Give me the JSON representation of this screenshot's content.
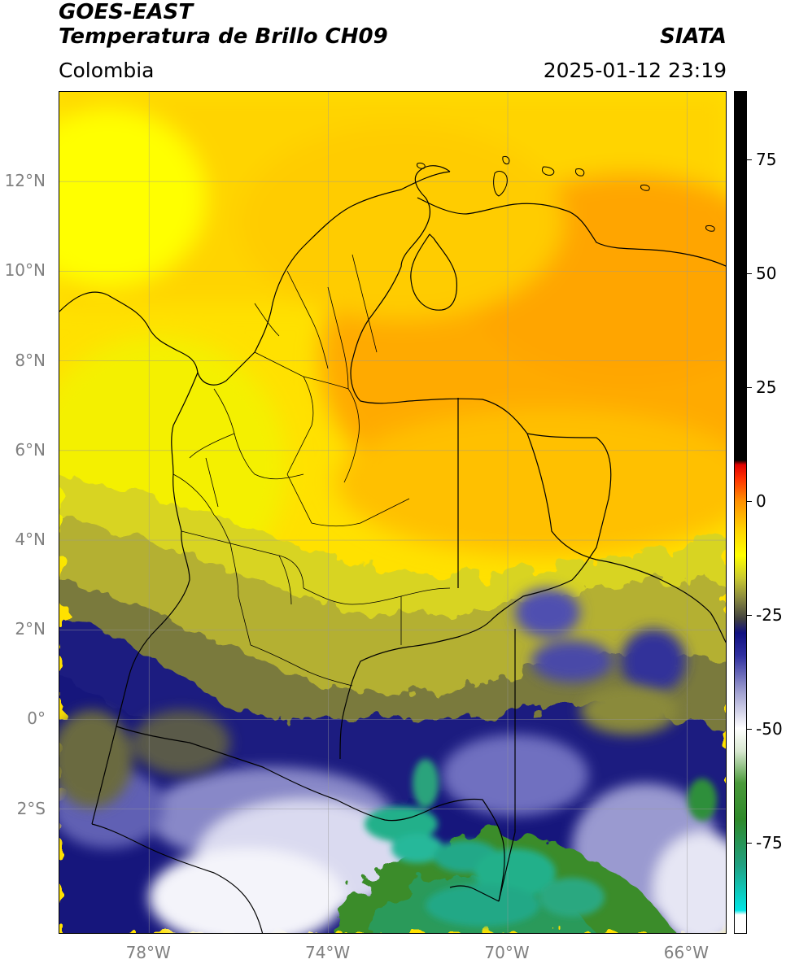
{
  "header": {
    "satellite": "GOES-EAST",
    "product": "Temperatura de Brillo CH09",
    "agency": "SIATA",
    "region": "Colombia",
    "datetime": "2025-01-12 23:19"
  },
  "map": {
    "projection": "PlateCarree",
    "extent": {
      "lon_min": -80,
      "lon_max": -65.1,
      "lat_min": -4.8,
      "lat_max": 14
    },
    "grid": true,
    "lat_ticks": [
      {
        "value": 12,
        "label": "12°N"
      },
      {
        "value": 10,
        "label": "10°N"
      },
      {
        "value": 8,
        "label": "8°N"
      },
      {
        "value": 6,
        "label": "6°N"
      },
      {
        "value": 4,
        "label": "4°N"
      },
      {
        "value": 2,
        "label": "2°N"
      },
      {
        "value": 0,
        "label": "0°"
      },
      {
        "value": -2,
        "label": "2°S"
      }
    ],
    "lon_ticks": [
      {
        "value": -78,
        "label": "78°W"
      },
      {
        "value": -74,
        "label": "74°W"
      },
      {
        "value": -70,
        "label": "70°W"
      },
      {
        "value": -66,
        "label": "66°W"
      }
    ]
  },
  "colorbar": {
    "range": [
      -95,
      90
    ],
    "ticks": [
      {
        "value": 75,
        "label": "75"
      },
      {
        "value": 50,
        "label": "50"
      },
      {
        "value": 25,
        "label": "25"
      },
      {
        "value": 0,
        "label": "0"
      },
      {
        "value": -25,
        "label": "-25"
      },
      {
        "value": -50,
        "label": "-50"
      },
      {
        "value": -75,
        "label": "-75"
      }
    ],
    "stops": [
      {
        "value": -95,
        "color": "#ffffff"
      },
      {
        "value": -91,
        "color": "#ffffff"
      },
      {
        "value": -90,
        "color": "#00e5e5"
      },
      {
        "value": -80,
        "color": "#20a080"
      },
      {
        "value": -70,
        "color": "#2f8a2a"
      },
      {
        "value": -62,
        "color": "#4a9a3a"
      },
      {
        "value": -55,
        "color": "#d8e8d0"
      },
      {
        "value": -50,
        "color": "#ffffff"
      },
      {
        "value": -42,
        "color": "#a0a0d0"
      },
      {
        "value": -34,
        "color": "#3030a0"
      },
      {
        "value": -29,
        "color": "#101080"
      },
      {
        "value": -26,
        "color": "#404040"
      },
      {
        "value": -22,
        "color": "#808040"
      },
      {
        "value": -17,
        "color": "#c8c830"
      },
      {
        "value": -12,
        "color": "#ffff00"
      },
      {
        "value": -6,
        "color": "#ffd000"
      },
      {
        "value": 0,
        "color": "#ff9000"
      },
      {
        "value": 5,
        "color": "#ff3000"
      },
      {
        "value": 8,
        "color": "#e00000"
      },
      {
        "value": 9,
        "color": "#000000"
      },
      {
        "value": 90,
        "color": "#000000"
      }
    ]
  },
  "field_colors": {
    "warm": "#ffa800",
    "mid_warm": "#ffc800",
    "yellow": "#ffee00",
    "olive": "#b8b428",
    "dark_olive": "#6e7040",
    "navy": "#12147e",
    "blue": "#4a4aaa",
    "white": "#f2f2f8",
    "green": "#3a8c2a",
    "teal": "#22b08a"
  }
}
